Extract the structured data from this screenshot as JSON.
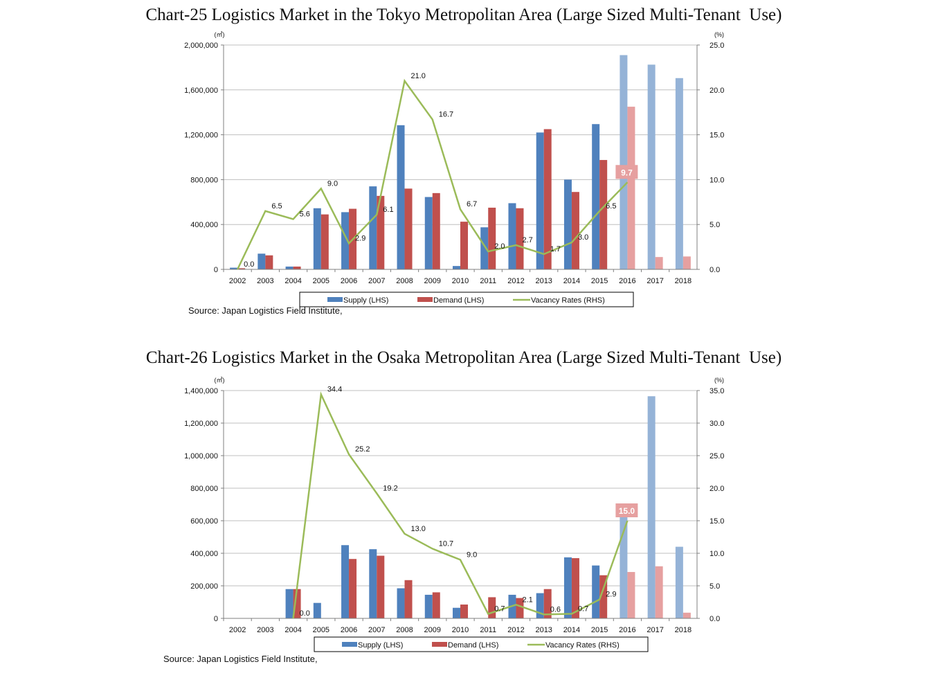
{
  "titles": {
    "chart1": "Chart-25 Logistics Market in the Tokyo Metropolitan Area (Large Sized Multi-Tenant  Use)",
    "chart2": "Chart-26 Logistics Market in the Osaka Metropolitan Area (Large Sized Multi-Tenant  Use)"
  },
  "sources": {
    "chart1": "Source: Japan Logistics Field Institute,",
    "chart2": "Source: Japan Logistics Field Institute,"
  },
  "colors": {
    "supply": "#4f81bd",
    "demand": "#c0504d",
    "supply_forecast": "#95b3d7",
    "demand_forecast": "#e6a0a0",
    "vacancy": "#9bbb59",
    "highlight_label_bg": "#e6a0a0"
  },
  "chart_data": [
    {
      "type": "bar",
      "title": "Chart-25 Logistics Market in the Tokyo Metropolitan Area (Large Sized Multi-Tenant  Use)",
      "ylabel": "(㎡)",
      "y2label": "(%)",
      "categories": [
        "2002",
        "2003",
        "2004",
        "2005",
        "2006",
        "2007",
        "2008",
        "2009",
        "2010",
        "2011",
        "2012",
        "2013",
        "2014",
        "2015",
        "2016",
        "2017",
        "2018"
      ],
      "ylim": [
        0,
        2000000
      ],
      "y2lim": [
        0,
        25
      ],
      "yticks": [
        0,
        400000,
        800000,
        1200000,
        1600000,
        2000000
      ],
      "ytick_labels": [
        "0",
        "400,000",
        "800,000",
        "1,200,000",
        "1,600,000",
        "2,000,000"
      ],
      "y2ticks": [
        0,
        5,
        10,
        15,
        20,
        25
      ],
      "y2tick_labels": [
        "0.0",
        "5.0",
        "10.0",
        "15.0",
        "20.0",
        "25.0"
      ],
      "legend": [
        "Supply (LHS)",
        "Demand (LHS)",
        "Vacancy Rates  (RHS)"
      ],
      "legend_position": "bottom",
      "grid": true,
      "forecast_from_index": 14,
      "series": [
        {
          "name": "Supply (LHS)",
          "type": "bar",
          "values": [
            15000,
            140000,
            25000,
            545000,
            510000,
            740000,
            1285000,
            645000,
            30000,
            375000,
            590000,
            1220000,
            800000,
            1295000,
            1910000,
            1825000,
            1705000
          ]
        },
        {
          "name": "Demand (LHS)",
          "type": "bar",
          "values": [
            10000,
            125000,
            25000,
            490000,
            540000,
            655000,
            720000,
            680000,
            425000,
            550000,
            545000,
            1250000,
            690000,
            975000,
            1450000,
            110000,
            115000
          ]
        },
        {
          "name": "Vacancy Rates  (RHS)",
          "type": "line",
          "axis": "right",
          "values": [
            0.0,
            6.5,
            5.6,
            9.0,
            2.9,
            6.1,
            21.0,
            16.7,
            6.7,
            2.0,
            2.7,
            1.7,
            3.0,
            6.5,
            9.7,
            null,
            null
          ],
          "labels": [
            "0.0",
            "6.5",
            "5.6",
            "9.0",
            "2.9",
            "6.1",
            "21.0",
            "16.7",
            "6.7",
            "2.0",
            "2.7",
            "1.7",
            "3.0",
            "6.5",
            "9.7",
            null,
            null
          ],
          "highlight_index": 14
        }
      ]
    },
    {
      "type": "bar",
      "title": "Chart-26 Logistics Market in the Osaka Metropolitan Area (Large Sized Multi-Tenant  Use)",
      "ylabel": "(㎡)",
      "y2label": "(%)",
      "categories": [
        "2002",
        "2003",
        "2004",
        "2005",
        "2006",
        "2007",
        "2008",
        "2009",
        "2010",
        "2011",
        "2012",
        "2013",
        "2014",
        "2015",
        "2016",
        "2017",
        "2018"
      ],
      "ylim": [
        0,
        1400000
      ],
      "y2lim": [
        0,
        35
      ],
      "yticks": [
        0,
        200000,
        400000,
        600000,
        800000,
        1000000,
        1200000,
        1400000
      ],
      "ytick_labels": [
        "0",
        "200,000",
        "400,000",
        "600,000",
        "800,000",
        "1,000,000",
        "1,200,000",
        "1,400,000"
      ],
      "y2ticks": [
        0,
        5,
        10,
        15,
        20,
        25,
        30,
        35
      ],
      "y2tick_labels": [
        "0.0",
        "5.0",
        "10.0",
        "15.0",
        "20.0",
        "25.0",
        "30.0",
        "35.0"
      ],
      "legend": [
        "Supply (LHS)",
        "Demand (LHS)",
        "Vacancy Rates  (RHS)"
      ],
      "legend_position": "bottom",
      "grid": true,
      "forecast_from_index": 14,
      "series": [
        {
          "name": "Supply (LHS)",
          "type": "bar",
          "values": [
            0,
            0,
            180000,
            95000,
            450000,
            425000,
            185000,
            145000,
            65000,
            0,
            145000,
            155000,
            375000,
            325000,
            625000,
            1365000,
            440000
          ]
        },
        {
          "name": "Demand (LHS)",
          "type": "bar",
          "values": [
            0,
            0,
            180000,
            0,
            365000,
            385000,
            235000,
            160000,
            85000,
            130000,
            125000,
            180000,
            370000,
            265000,
            285000,
            320000,
            35000
          ]
        },
        {
          "name": "Vacancy Rates  (RHS)",
          "type": "line",
          "axis": "right",
          "values": [
            null,
            null,
            0.0,
            34.4,
            25.2,
            19.2,
            13.0,
            10.7,
            9.0,
            0.7,
            2.1,
            0.6,
            0.7,
            2.9,
            15.0,
            null,
            null
          ],
          "labels": [
            null,
            null,
            "0.0",
            "34.4",
            "25.2",
            "19.2",
            "13.0",
            "10.7",
            "9.0",
            "0.7",
            "2.1",
            "0.6",
            "0.7",
            "2.9",
            "15.0",
            null,
            null
          ],
          "highlight_index": 14
        }
      ]
    }
  ]
}
